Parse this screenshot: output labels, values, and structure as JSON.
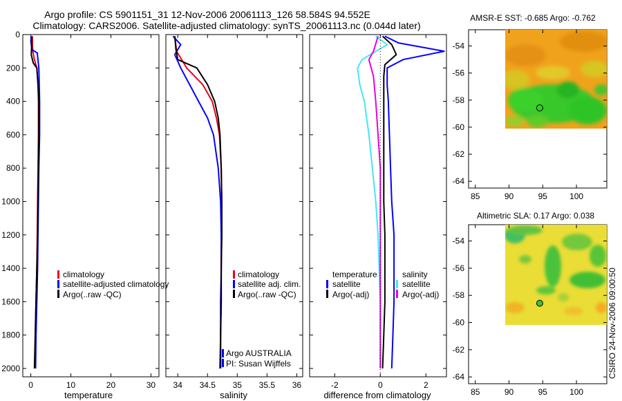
{
  "title": {
    "line1": "Argo profile: CS 5901151_31 12-Nov-2006 20061113_126 58.584S 94.552E",
    "line2": "Climatology: CARS2006. Satellite-adjusted climatology: synTS_20061113.nc (0.044d later)"
  },
  "credit": "CSIRO 24-Nov-2006 09:00:50",
  "argo_text": {
    "line1": "Argo AUSTRALIA",
    "line2": "PI: Susan Wijffels"
  },
  "colors": {
    "red": "#e8001c",
    "blue": "#0000ff",
    "black": "#000000",
    "cyan": "#44e5f5",
    "magenta": "#e600e6"
  },
  "chart_data": [
    {
      "type": "line",
      "name": "temperature",
      "xlabel": "temperature",
      "xlim": [
        -2,
        32
      ],
      "xticks": [
        0,
        10,
        20,
        30
      ],
      "ylim": [
        0,
        2050
      ],
      "yticks": [
        0,
        200,
        400,
        600,
        800,
        1000,
        1200,
        1400,
        1600,
        1800,
        2000
      ],
      "legend": [
        "climatology",
        "satellite-adjusted climatology",
        "Argo(..raw -QC)"
      ],
      "series": [
        {
          "name": "climatology",
          "color": "red",
          "points": [
            [
              0.4,
              10
            ],
            [
              0.4,
              60
            ],
            [
              0.5,
              100
            ],
            [
              0.9,
              150
            ],
            [
              1.5,
              200
            ],
            [
              1.8,
              300
            ],
            [
              1.9,
              400
            ],
            [
              1.9,
              600
            ],
            [
              1.8,
              800
            ],
            [
              1.7,
              1000
            ],
            [
              1.6,
              1200
            ],
            [
              1.5,
              1400
            ],
            [
              1.3,
              1600
            ],
            [
              1.1,
              1800
            ],
            [
              1.0,
              2000
            ]
          ]
        },
        {
          "name": "satellite-adjusted climatology",
          "color": "blue",
          "points": [
            [
              0.1,
              10
            ],
            [
              0.0,
              40
            ],
            [
              0.3,
              90
            ],
            [
              1.6,
              110
            ],
            [
              2.0,
              200
            ],
            [
              2.1,
              300
            ],
            [
              2.2,
              400
            ],
            [
              2.2,
              600
            ],
            [
              2.0,
              800
            ],
            [
              1.9,
              1000
            ],
            [
              1.8,
              1200
            ],
            [
              1.7,
              1400
            ],
            [
              1.5,
              1600
            ],
            [
              1.3,
              1800
            ],
            [
              1.2,
              2000
            ]
          ]
        },
        {
          "name": "Argo(..raw -QC)",
          "color": "black",
          "points": [
            [
              0.2,
              10
            ],
            [
              0.2,
              80
            ],
            [
              0.1,
              120
            ],
            [
              0.6,
              170
            ],
            [
              1.5,
              200
            ],
            [
              1.8,
              300
            ],
            [
              2.0,
              400
            ],
            [
              2.0,
              600
            ],
            [
              1.9,
              800
            ],
            [
              1.8,
              1000
            ],
            [
              1.7,
              1200
            ],
            [
              1.5,
              1400
            ],
            [
              1.3,
              1600
            ],
            [
              1.1,
              1800
            ],
            [
              0.9,
              2000
            ]
          ]
        }
      ]
    },
    {
      "type": "line",
      "name": "salinity",
      "xlabel": "salinity",
      "xlim": [
        33.8,
        36.1
      ],
      "xticks": [
        34,
        34.5,
        35,
        35.5,
        36
      ],
      "ylim": [
        0,
        2050
      ],
      "legend": [
        "climatology",
        "satellite adj. clim.",
        "Argo(..raw -QC)"
      ],
      "series": [
        {
          "name": "climatology",
          "color": "red",
          "points": [
            [
              33.95,
              10
            ],
            [
              33.98,
              100
            ],
            [
              34.15,
              200
            ],
            [
              34.42,
              300
            ],
            [
              34.58,
              400
            ],
            [
              34.65,
              500
            ],
            [
              34.7,
              600
            ],
            [
              34.73,
              800
            ],
            [
              34.74,
              1000
            ],
            [
              34.74,
              1200
            ],
            [
              34.73,
              1400
            ],
            [
              34.73,
              1600
            ],
            [
              34.72,
              1800
            ],
            [
              34.72,
              2000
            ]
          ]
        },
        {
          "name": "satellite adj. clim.",
          "color": "blue",
          "points": [
            [
              33.92,
              10
            ],
            [
              34.05,
              60
            ],
            [
              33.95,
              120
            ],
            [
              34.05,
              200
            ],
            [
              34.2,
              300
            ],
            [
              34.35,
              400
            ],
            [
              34.5,
              500
            ],
            [
              34.6,
              600
            ],
            [
              34.68,
              800
            ],
            [
              34.72,
              1000
            ],
            [
              34.73,
              1200
            ],
            [
              34.73,
              1400
            ],
            [
              34.72,
              1600
            ],
            [
              34.72,
              1800
            ],
            [
              34.72,
              2000
            ]
          ]
        },
        {
          "name": "Argo(..raw -QC)",
          "color": "black",
          "points": [
            [
              33.95,
              10
            ],
            [
              33.97,
              90
            ],
            [
              34.0,
              150
            ],
            [
              34.32,
              200
            ],
            [
              34.5,
              300
            ],
            [
              34.62,
              400
            ],
            [
              34.68,
              500
            ],
            [
              34.71,
              600
            ],
            [
              34.73,
              800
            ],
            [
              34.74,
              1000
            ],
            [
              34.74,
              1200
            ],
            [
              34.73,
              1400
            ],
            [
              34.73,
              1600
            ],
            [
              34.72,
              1800
            ],
            [
              34.71,
              2000
            ]
          ]
        }
      ]
    },
    {
      "type": "line",
      "name": "difference",
      "xlabel": "difference from climatology",
      "xlim": [
        -3.1,
        2.9
      ],
      "xticks": [
        -2,
        0,
        2
      ],
      "ylim": [
        0,
        2050
      ],
      "legend": [
        "temperature",
        "satellite",
        "Argo(-adj)",
        "salinity",
        "satellite",
        "Argo(-adj)"
      ],
      "series": [
        {
          "name": "temperature satellite",
          "color": "blue",
          "points": [
            [
              0.2,
              10
            ],
            [
              0.8,
              50
            ],
            [
              2.8,
              100
            ],
            [
              1.0,
              150
            ],
            [
              0.3,
              200
            ],
            [
              0.3,
              300
            ],
            [
              0.35,
              400
            ],
            [
              0.4,
              600
            ],
            [
              0.45,
              800
            ],
            [
              0.5,
              1000
            ],
            [
              0.6,
              1200
            ],
            [
              0.6,
              1400
            ],
            [
              0.6,
              1600
            ],
            [
              0.55,
              1800
            ],
            [
              0.5,
              2000
            ]
          ]
        },
        {
          "name": "temperature Argo(-adj)",
          "color": "black",
          "points": [
            [
              0.1,
              10
            ],
            [
              0.5,
              60
            ],
            [
              0.7,
              120
            ],
            [
              0.2,
              180
            ],
            [
              0.15,
              250
            ],
            [
              0.15,
              400
            ],
            [
              0.15,
              600
            ],
            [
              0.15,
              800
            ],
            [
              0.15,
              1000
            ],
            [
              0.2,
              1200
            ],
            [
              0.2,
              1400
            ],
            [
              0.2,
              1600
            ],
            [
              0.15,
              1800
            ],
            [
              0.1,
              2000
            ]
          ]
        },
        {
          "name": "salinity satellite",
          "color": "cyan",
          "points": [
            [
              -0.2,
              10
            ],
            [
              0.3,
              60
            ],
            [
              -0.8,
              150
            ],
            [
              -1.0,
              200
            ],
            [
              -0.9,
              300
            ],
            [
              -0.7,
              400
            ],
            [
              -0.5,
              600
            ],
            [
              -0.35,
              800
            ],
            [
              -0.2,
              1000
            ],
            [
              -0.1,
              1200
            ],
            [
              -0.05,
              1400
            ],
            [
              0.0,
              1600
            ],
            [
              0.0,
              1800
            ],
            [
              0.0,
              2000
            ]
          ]
        },
        {
          "name": "salinity Argo(-adj)",
          "color": "magenta",
          "points": [
            [
              -0.1,
              10
            ],
            [
              -0.3,
              100
            ],
            [
              -0.5,
              150
            ],
            [
              -0.3,
              250
            ],
            [
              -0.2,
              400
            ],
            [
              -0.1,
              600
            ],
            [
              0.0,
              800
            ],
            [
              0.0,
              1000
            ],
            [
              0.0,
              1200
            ],
            [
              0.0,
              1400
            ],
            [
              0.0,
              1600
            ],
            [
              0.0,
              1800
            ],
            [
              0.0,
              2000
            ]
          ]
        }
      ]
    },
    {
      "type": "heatmap",
      "name": "sst-map",
      "title": "AMSR-E SST: -0.685 Argo: -0.762",
      "xticks": [
        85,
        90,
        95,
        100
      ],
      "yticks": [
        -54,
        -56,
        -58,
        -60,
        -62,
        -64
      ],
      "xlim": [
        84,
        104.5
      ],
      "ylim": [
        -64.5,
        -52.8
      ],
      "data_extent": {
        "lon": [
          90,
          104.5
        ],
        "lat": [
          -60,
          -52.8
        ]
      },
      "argo_position": {
        "lon": 94.55,
        "lat": -58.58
      }
    },
    {
      "type": "heatmap",
      "name": "sla-map",
      "title": "Altimetric SLA: 0.17 Argo: 0.038",
      "xticks": [
        85,
        90,
        95,
        100
      ],
      "yticks": [
        -54,
        -56,
        -58,
        -60,
        -62,
        -64
      ],
      "xlim": [
        84,
        104.5
      ],
      "ylim": [
        -64.5,
        -52.8
      ],
      "data_extent": {
        "lon": [
          90,
          104.5
        ],
        "lat": [
          -60,
          -52.8
        ]
      },
      "argo_position": {
        "lon": 94.55,
        "lat": -58.58
      }
    }
  ]
}
